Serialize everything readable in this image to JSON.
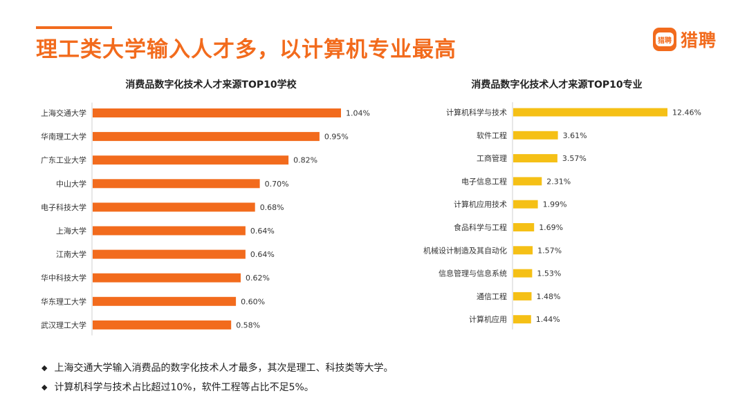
{
  "page": {
    "title": "理工类大学输入人才多，以计算机专业最高",
    "logo_mark": "猎聘",
    "logo_text": "猎聘",
    "accent_color": "#F26B1D",
    "secondary_color": "#F5C016"
  },
  "chart_data": [
    {
      "type": "bar",
      "orientation": "horizontal",
      "title": "消费品数字化技术人才来源TOP10学校",
      "color": "#F26B1D",
      "categories": [
        "上海交通大学",
        "华南理工大学",
        "广东工业大学",
        "中山大学",
        "电子科技大学",
        "上海大学",
        "江南大学",
        "华中科技大学",
        "华东理工大学",
        "武汉理工大学"
      ],
      "values": [
        1.04,
        0.95,
        0.82,
        0.7,
        0.68,
        0.64,
        0.64,
        0.62,
        0.6,
        0.58
      ],
      "labels": [
        "1.04%",
        "0.95%",
        "0.82%",
        "0.70%",
        "0.68%",
        "0.64%",
        "0.64%",
        "0.62%",
        "0.60%",
        "0.58%"
      ],
      "xlim": [
        0,
        1.04
      ]
    },
    {
      "type": "bar",
      "orientation": "horizontal",
      "title": "消费品数字化技术人才来源TOP10专业",
      "color": "#F5C016",
      "categories": [
        "计算机科学与技术",
        "软件工程",
        "工商管理",
        "电子信息工程",
        "计算机应用技术",
        "食品科学与工程",
        "机械设计制造及其自动化",
        "信息管理与信息系统",
        "通信工程",
        "计算机应用"
      ],
      "values": [
        12.46,
        3.61,
        3.57,
        2.31,
        1.99,
        1.69,
        1.57,
        1.53,
        1.48,
        1.44
      ],
      "labels": [
        "12.46%",
        "3.61%",
        "3.57%",
        "2.31%",
        "1.99%",
        "1.69%",
        "1.57%",
        "1.53%",
        "1.48%",
        "1.44%"
      ],
      "xlim": [
        0,
        12.46
      ]
    }
  ],
  "notes": [
    "上海交通大学输入消费品的数字化技术人才最多，其次是理工、科技类等大学。",
    "计算机科学与技术占比超过10%，软件工程等占比不足5%。"
  ],
  "bullet_glyph": "◆"
}
